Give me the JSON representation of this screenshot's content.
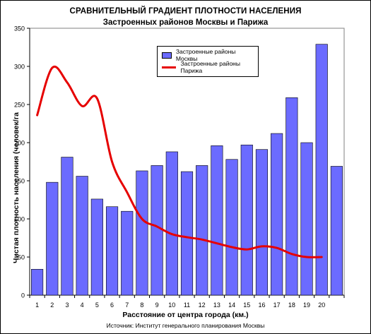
{
  "titles": {
    "line1": "СРАВНИТЕЛЬНЫЙ ГРАДИЕНТ ПЛОТНОСТИ НАСЕЛЕНИЯ",
    "line2": "Застроенных районов Москвы и Парижа"
  },
  "source": "Источник: Институт генерального планирования Москвы",
  "colors": {
    "bar": "#6b6bff",
    "bar_border": "#000000",
    "line": "#e60000",
    "plot_border": "#808080"
  },
  "chart_data": {
    "type": "bar",
    "title": "СРАВНИТЕЛЬНЫЙ ГРАДИЕНТ ПЛОТНОСТИ НАСЕЛЕНИЯ",
    "subtitle": "Застроенных районов Москвы и Парижа",
    "xlabel": "Расстояние от центра города (км.)",
    "ylabel": "Чистая плотность населения (человек/га",
    "ylim": [
      0,
      350
    ],
    "yticks": [
      0,
      50,
      100,
      150,
      200,
      250,
      300,
      350
    ],
    "grid": false,
    "legend_position": "top-center",
    "categories": [
      "1",
      "2",
      "3",
      "4",
      "5",
      "6",
      "7",
      "8",
      "9",
      "10",
      "11",
      "12",
      "13",
      "14",
      "15",
      "16",
      "17",
      "18",
      "19",
      "20",
      ""
    ],
    "series": [
      {
        "name": "Застроенные районы Москвы",
        "type": "bar",
        "values": [
          34,
          148,
          181,
          156,
          126,
          116,
          110,
          163,
          170,
          188,
          162,
          170,
          196,
          178,
          197,
          191,
          212,
          259,
          200,
          329,
          169
        ]
      },
      {
        "name": "Застроенные районы Парижа",
        "type": "line",
        "values": [
          236,
          298,
          279,
          248,
          258,
          175,
          135,
          100,
          90,
          80,
          76,
          73,
          68,
          63,
          60,
          64,
          62,
          54,
          50,
          50,
          null
        ]
      }
    ]
  }
}
